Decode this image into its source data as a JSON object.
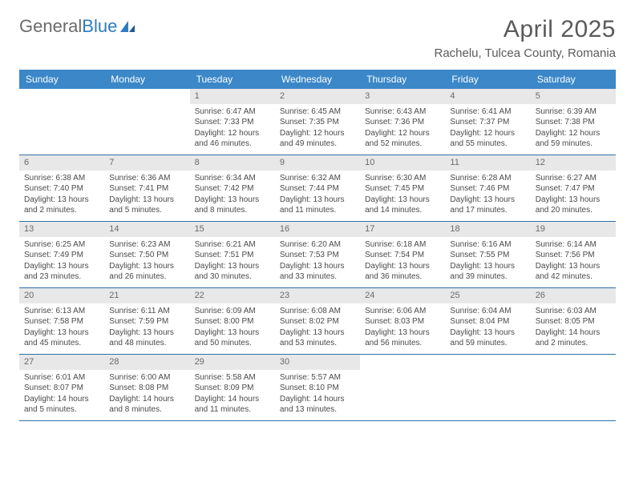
{
  "logo": {
    "text1": "General",
    "text2": "Blue"
  },
  "title": "April 2025",
  "location": "Rachelu, Tulcea County, Romania",
  "colors": {
    "header_bg": "#3b87c8",
    "header_text": "#ffffff",
    "daynum_bg": "#e8e8e8",
    "row_border": "#2f6fa8",
    "logo_gray": "#6b6b6b",
    "logo_blue": "#2f7bbf",
    "title_color": "#5a5a5a"
  },
  "weekdays": [
    "Sunday",
    "Monday",
    "Tuesday",
    "Wednesday",
    "Thursday",
    "Friday",
    "Saturday"
  ],
  "weeks": [
    [
      null,
      null,
      {
        "n": "1",
        "sr": "6:47 AM",
        "ss": "7:33 PM",
        "dl": "12 hours and 46 minutes."
      },
      {
        "n": "2",
        "sr": "6:45 AM",
        "ss": "7:35 PM",
        "dl": "12 hours and 49 minutes."
      },
      {
        "n": "3",
        "sr": "6:43 AM",
        "ss": "7:36 PM",
        "dl": "12 hours and 52 minutes."
      },
      {
        "n": "4",
        "sr": "6:41 AM",
        "ss": "7:37 PM",
        "dl": "12 hours and 55 minutes."
      },
      {
        "n": "5",
        "sr": "6:39 AM",
        "ss": "7:38 PM",
        "dl": "12 hours and 59 minutes."
      }
    ],
    [
      {
        "n": "6",
        "sr": "6:38 AM",
        "ss": "7:40 PM",
        "dl": "13 hours and 2 minutes."
      },
      {
        "n": "7",
        "sr": "6:36 AM",
        "ss": "7:41 PM",
        "dl": "13 hours and 5 minutes."
      },
      {
        "n": "8",
        "sr": "6:34 AM",
        "ss": "7:42 PM",
        "dl": "13 hours and 8 minutes."
      },
      {
        "n": "9",
        "sr": "6:32 AM",
        "ss": "7:44 PM",
        "dl": "13 hours and 11 minutes."
      },
      {
        "n": "10",
        "sr": "6:30 AM",
        "ss": "7:45 PM",
        "dl": "13 hours and 14 minutes."
      },
      {
        "n": "11",
        "sr": "6:28 AM",
        "ss": "7:46 PM",
        "dl": "13 hours and 17 minutes."
      },
      {
        "n": "12",
        "sr": "6:27 AM",
        "ss": "7:47 PM",
        "dl": "13 hours and 20 minutes."
      }
    ],
    [
      {
        "n": "13",
        "sr": "6:25 AM",
        "ss": "7:49 PM",
        "dl": "13 hours and 23 minutes."
      },
      {
        "n": "14",
        "sr": "6:23 AM",
        "ss": "7:50 PM",
        "dl": "13 hours and 26 minutes."
      },
      {
        "n": "15",
        "sr": "6:21 AM",
        "ss": "7:51 PM",
        "dl": "13 hours and 30 minutes."
      },
      {
        "n": "16",
        "sr": "6:20 AM",
        "ss": "7:53 PM",
        "dl": "13 hours and 33 minutes."
      },
      {
        "n": "17",
        "sr": "6:18 AM",
        "ss": "7:54 PM",
        "dl": "13 hours and 36 minutes."
      },
      {
        "n": "18",
        "sr": "6:16 AM",
        "ss": "7:55 PM",
        "dl": "13 hours and 39 minutes."
      },
      {
        "n": "19",
        "sr": "6:14 AM",
        "ss": "7:56 PM",
        "dl": "13 hours and 42 minutes."
      }
    ],
    [
      {
        "n": "20",
        "sr": "6:13 AM",
        "ss": "7:58 PM",
        "dl": "13 hours and 45 minutes."
      },
      {
        "n": "21",
        "sr": "6:11 AM",
        "ss": "7:59 PM",
        "dl": "13 hours and 48 minutes."
      },
      {
        "n": "22",
        "sr": "6:09 AM",
        "ss": "8:00 PM",
        "dl": "13 hours and 50 minutes."
      },
      {
        "n": "23",
        "sr": "6:08 AM",
        "ss": "8:02 PM",
        "dl": "13 hours and 53 minutes."
      },
      {
        "n": "24",
        "sr": "6:06 AM",
        "ss": "8:03 PM",
        "dl": "13 hours and 56 minutes."
      },
      {
        "n": "25",
        "sr": "6:04 AM",
        "ss": "8:04 PM",
        "dl": "13 hours and 59 minutes."
      },
      {
        "n": "26",
        "sr": "6:03 AM",
        "ss": "8:05 PM",
        "dl": "14 hours and 2 minutes."
      }
    ],
    [
      {
        "n": "27",
        "sr": "6:01 AM",
        "ss": "8:07 PM",
        "dl": "14 hours and 5 minutes."
      },
      {
        "n": "28",
        "sr": "6:00 AM",
        "ss": "8:08 PM",
        "dl": "14 hours and 8 minutes."
      },
      {
        "n": "29",
        "sr": "5:58 AM",
        "ss": "8:09 PM",
        "dl": "14 hours and 11 minutes."
      },
      {
        "n": "30",
        "sr": "5:57 AM",
        "ss": "8:10 PM",
        "dl": "14 hours and 13 minutes."
      },
      null,
      null,
      null
    ]
  ],
  "labels": {
    "sunrise": "Sunrise:",
    "sunset": "Sunset:",
    "daylight": "Daylight:"
  }
}
